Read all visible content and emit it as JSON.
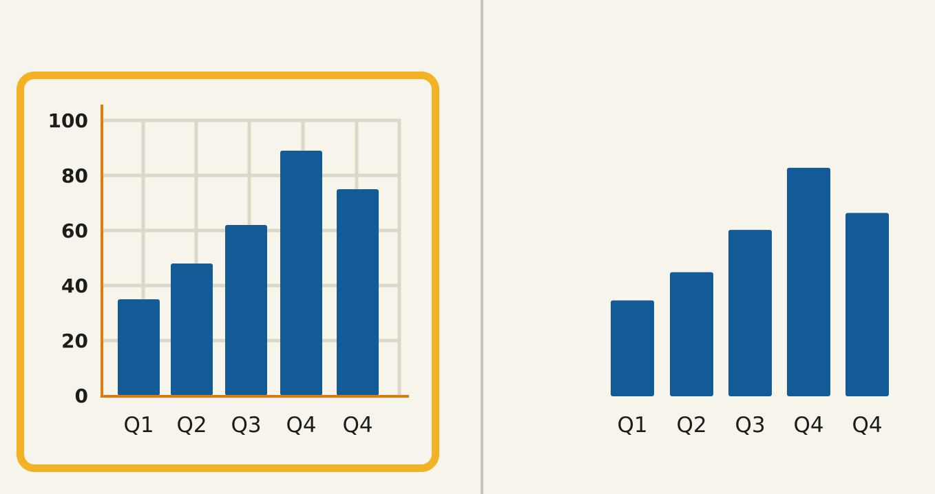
{
  "chart_data": [
    {
      "type": "bar",
      "categories": [
        "Q1",
        "Q2",
        "Q3",
        "Q4",
        "Q4"
      ],
      "values": [
        35,
        48,
        62,
        89,
        75
      ],
      "ylim": [
        0,
        100
      ],
      "yticks": [
        0,
        20,
        40,
        60,
        80,
        100
      ],
      "grid": true,
      "highlighted": true,
      "bar_color": "#135b96",
      "axis_color": "#e07b12",
      "grid_color": "#dcd8c8",
      "frame_color": "#f2b224"
    },
    {
      "type": "bar",
      "categories": [
        "Q1",
        "Q2",
        "Q3",
        "Q4",
        "Q4"
      ],
      "values": [
        34,
        44,
        59,
        81,
        65
      ],
      "ylim": [
        0,
        100
      ],
      "grid": false,
      "bar_color": "#135b96"
    }
  ]
}
